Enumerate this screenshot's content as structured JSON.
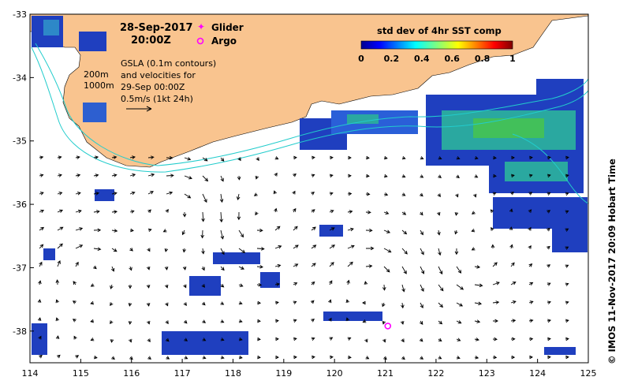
{
  "map": {
    "date_line1": "28-Sep-2017",
    "date_line2": "20:00Z",
    "legend_glider": "Glider",
    "legend_argo": "Argo",
    "gsla_lines": [
      "GSLA (0.1m contours)",
      "and velocities for",
      "29-Sep 00:00Z",
      "0.5m/s (1kt 24h)"
    ],
    "isobath_200": "200m",
    "isobath_1000": "1000m",
    "colorbar_title": "std dev of 4hr SST comp",
    "colorbar_ticks": [
      "0",
      "0.2",
      "0.4",
      "0.6",
      "0.8",
      "1"
    ],
    "credit": "© IMOS 11-Nov-2017 20:09 Hobart Time",
    "x_ticks": [
      "114",
      "115",
      "116",
      "117",
      "118",
      "119",
      "120",
      "121",
      "122",
      "123",
      "124",
      "125"
    ],
    "y_ticks": [
      "-33",
      "-34",
      "-35",
      "-36",
      "-37",
      "-38"
    ],
    "x_range": [
      114,
      125
    ],
    "y_range": [
      -38.5,
      -33
    ],
    "argo_position": {
      "lon": 121.05,
      "lat": -37.92
    },
    "colors": {
      "land": "#f9c48f",
      "isobath": "#22cccc",
      "glider": "#ff00ff",
      "argo": "#ff00ff",
      "arrows": "#000000"
    }
  }
}
